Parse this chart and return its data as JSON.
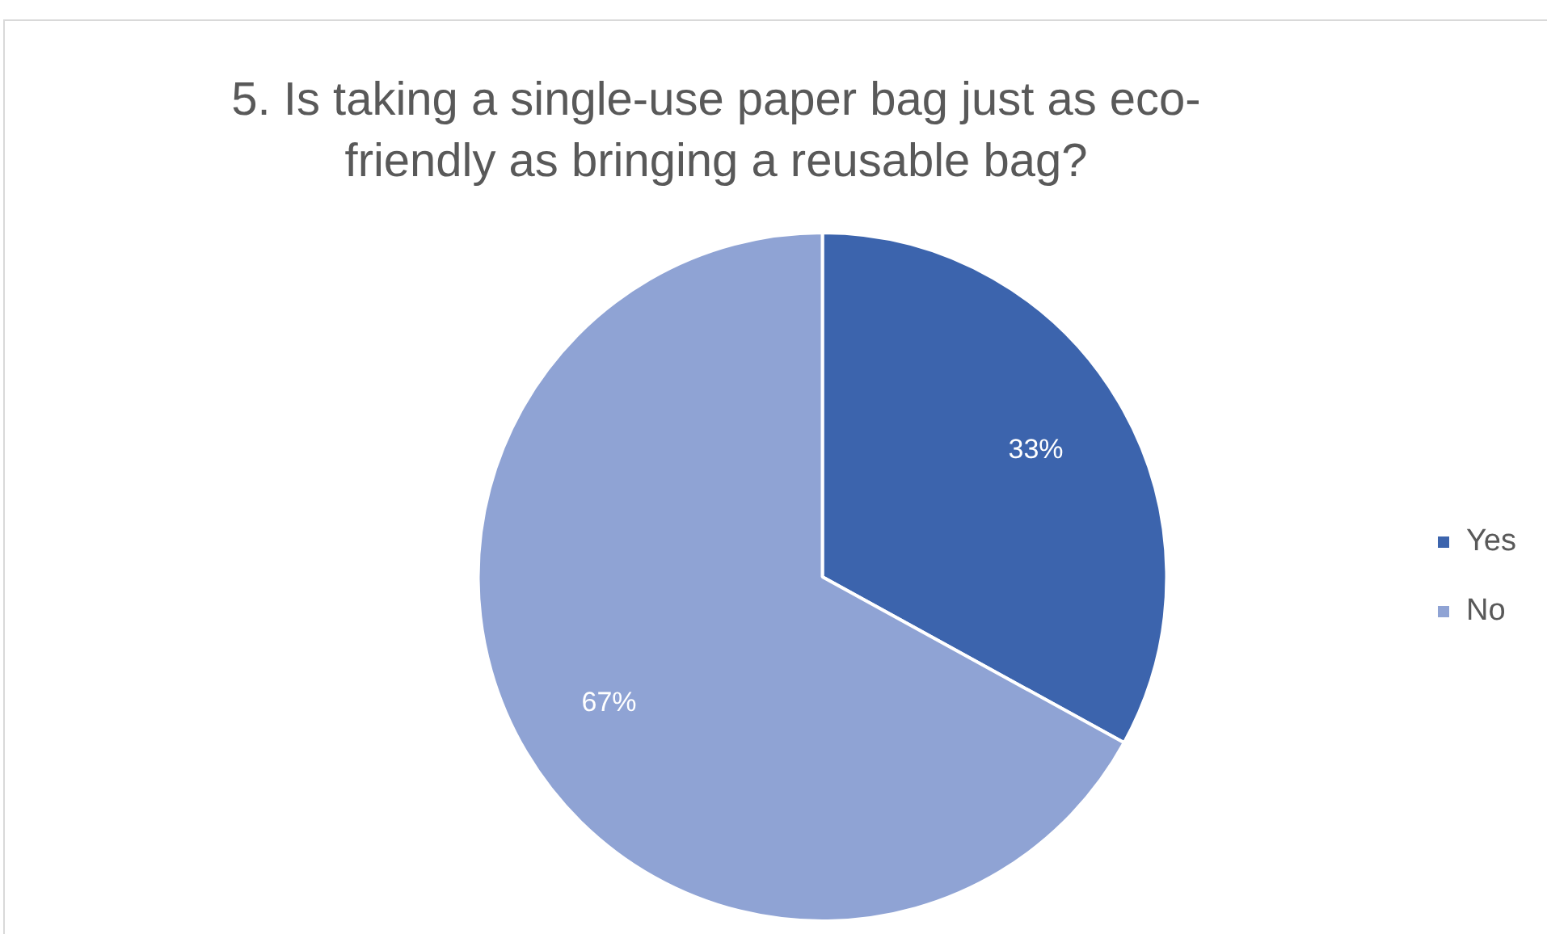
{
  "chart_data": {
    "type": "pie",
    "title": "5. Is taking a single-use paper bag just as eco-friendly as bringing a reusable bag?",
    "categories": [
      "Yes",
      "No"
    ],
    "values": [
      33,
      67
    ],
    "colors": [
      "#3c64ad",
      "#8fa3d4"
    ],
    "value_labels": [
      "33%",
      "67%"
    ],
    "legend": "right"
  }
}
